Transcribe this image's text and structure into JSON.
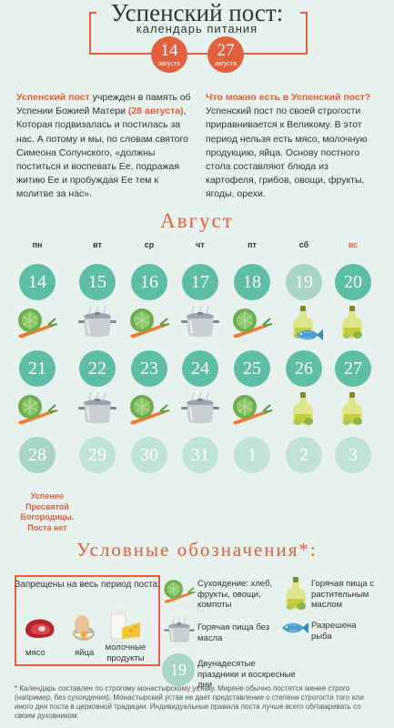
{
  "header": {
    "title": "Успенский пост:",
    "subtitle": "календарь питания",
    "start": {
      "day": "14",
      "month": "августа"
    },
    "end": {
      "day": "27",
      "month": "августа"
    }
  },
  "intro": {
    "left": {
      "highlight": "Успенский пост",
      "text1": " учрежден в память об Успении Божией Матери ",
      "date": "(28 августа)",
      "text2": ", Которая подвизалась и постилась за нас. А потому и мы, по словам святого Симеона Солунского, «должны поститься и воспевать Ее, подражая житию Ее и пробуждая Ее тем к молитве за нас»."
    },
    "right": {
      "question": "Что можно есть в Успенский пост?",
      "text": "Успенский пост по своей строгости приравнивается к Великому. В этот период нельзя есть мясо, молочную продукцию, яйца. Основу постного стола составляют блюда из картофеля, грибов, овощи, фрукты, ягоды, орехи."
    }
  },
  "calendar": {
    "month": "Август",
    "weekdays": [
      "пн",
      "вт",
      "ср",
      "чт",
      "пт",
      "сб",
      "вс"
    ],
    "week1": [
      "14",
      "15",
      "16",
      "17",
      "18",
      "19",
      "20"
    ],
    "week2": [
      "21",
      "22",
      "23",
      "24",
      "25",
      "26",
      "27"
    ],
    "week3": [
      "28",
      "29",
      "30",
      "31",
      "1",
      "2",
      "3"
    ],
    "week1_types": [
      "fast",
      "fast",
      "fast",
      "fast",
      "fast",
      "holi",
      "fast"
    ],
    "week2_types": [
      "fast",
      "fast",
      "fast",
      "fast",
      "fast",
      "fast",
      "fast"
    ],
    "week3_types": [
      "holi",
      "after",
      "after",
      "after",
      "after",
      "after",
      "after"
    ],
    "week1_food": [
      "dry",
      "hot",
      "dry",
      "hot",
      "dry",
      "oil-fish",
      "oil"
    ],
    "week2_food": [
      "dry",
      "hot",
      "dry",
      "hot",
      "dry",
      "oil",
      "oil"
    ],
    "note_28": "Успение Пресвятой Богородицы. Поста нет"
  },
  "legend": {
    "title": "Условные обозначения*:",
    "forbidden_title": "Запрещены на весь период поста:",
    "meat": "мясо",
    "eggs": "яйца",
    "dairy": "молочные продукты",
    "dry": "Сухоядение: хлеб, фрукты, овощи, компоты",
    "hot": "Горячая пища без масла",
    "oil": "Горячая пища с растительным маслом",
    "fish": "Разрешена рыба",
    "holiday_day": "19",
    "holiday": "Двунадесятые праздники и воскресные дни"
  },
  "footer": "* Календарь составлен по строгому монастырскому уставу. Миряне обычно постятся менее строго (например, без сухоядения). Монастырский устав не дает представление о степени строгости того или иного дня поста в церковной традиции. Индивидуальные правила поста лучше всего обговаривать со своим духовником.",
  "colors": {
    "accent": "#e2603d",
    "mint": "#5dbea5",
    "mint_light": "#a9d5c4",
    "background": "#e7f1ee"
  }
}
